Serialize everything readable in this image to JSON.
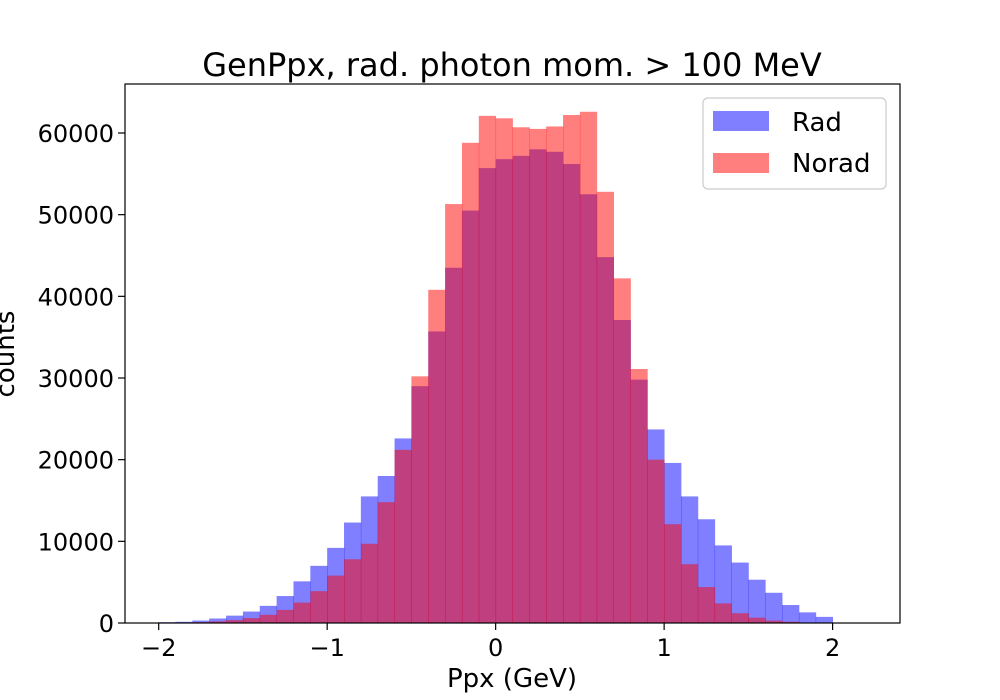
{
  "chart_data": {
    "type": "bar",
    "title": "GenPpx, rad. photon mom. > 100 MeV",
    "xlabel": "Ppx (GeV)",
    "ylabel": "counts",
    "xlim": [
      -2.2,
      2.4
    ],
    "ylim": [
      0,
      66000
    ],
    "xticks": [
      -2,
      -1,
      0,
      1,
      2
    ],
    "xtick_labels": [
      "−2",
      "−1",
      "0",
      "1",
      "2"
    ],
    "yticks": [
      0,
      10000,
      20000,
      30000,
      40000,
      50000,
      60000
    ],
    "ytick_labels": [
      "0",
      "10000",
      "20000",
      "30000",
      "40000",
      "50000",
      "60000"
    ],
    "bin_edges": [
      -2.0,
      -1.9,
      -1.8,
      -1.7,
      -1.6,
      -1.5,
      -1.4,
      -1.3,
      -1.2,
      -1.1,
      -1.0,
      -0.9,
      -0.8,
      -0.7,
      -0.6,
      -0.5,
      -0.4,
      -0.3,
      -0.2,
      -0.1,
      0.0,
      0.1,
      0.2,
      0.3,
      0.4,
      0.5,
      0.6,
      0.7,
      0.8,
      0.9,
      1.0,
      1.1,
      1.2,
      1.3,
      1.4,
      1.5,
      1.6,
      1.7,
      1.8,
      1.9,
      2.0
    ],
    "series": [
      {
        "name": "Rad",
        "color": "#0000ff",
        "alpha": 0.5,
        "values": [
          100,
          150,
          300,
          550,
          900,
          1400,
          2100,
          3300,
          5100,
          7000,
          9200,
          12300,
          15500,
          18000,
          22600,
          29000,
          35700,
          43500,
          50500,
          55700,
          56800,
          57200,
          58000,
          57700,
          56200,
          52500,
          44800,
          37100,
          29800,
          23700,
          19600,
          15500,
          12700,
          9500,
          7400,
          5300,
          3700,
          2200,
          1300,
          750
        ]
      },
      {
        "name": "Norad",
        "color": "#ff0000",
        "alpha": 0.5,
        "values": [
          50,
          50,
          100,
          200,
          350,
          600,
          1000,
          1600,
          2500,
          3900,
          5800,
          7800,
          9700,
          14800,
          21200,
          30200,
          40800,
          51300,
          58800,
          62100,
          61800,
          60700,
          60500,
          60800,
          62200,
          62600,
          52800,
          42200,
          31100,
          20000,
          12100,
          7200,
          4400,
          2400,
          1200,
          650,
          300,
          150,
          50,
          20
        ]
      }
    ],
    "legend_position": "top-right",
    "grid": false
  }
}
